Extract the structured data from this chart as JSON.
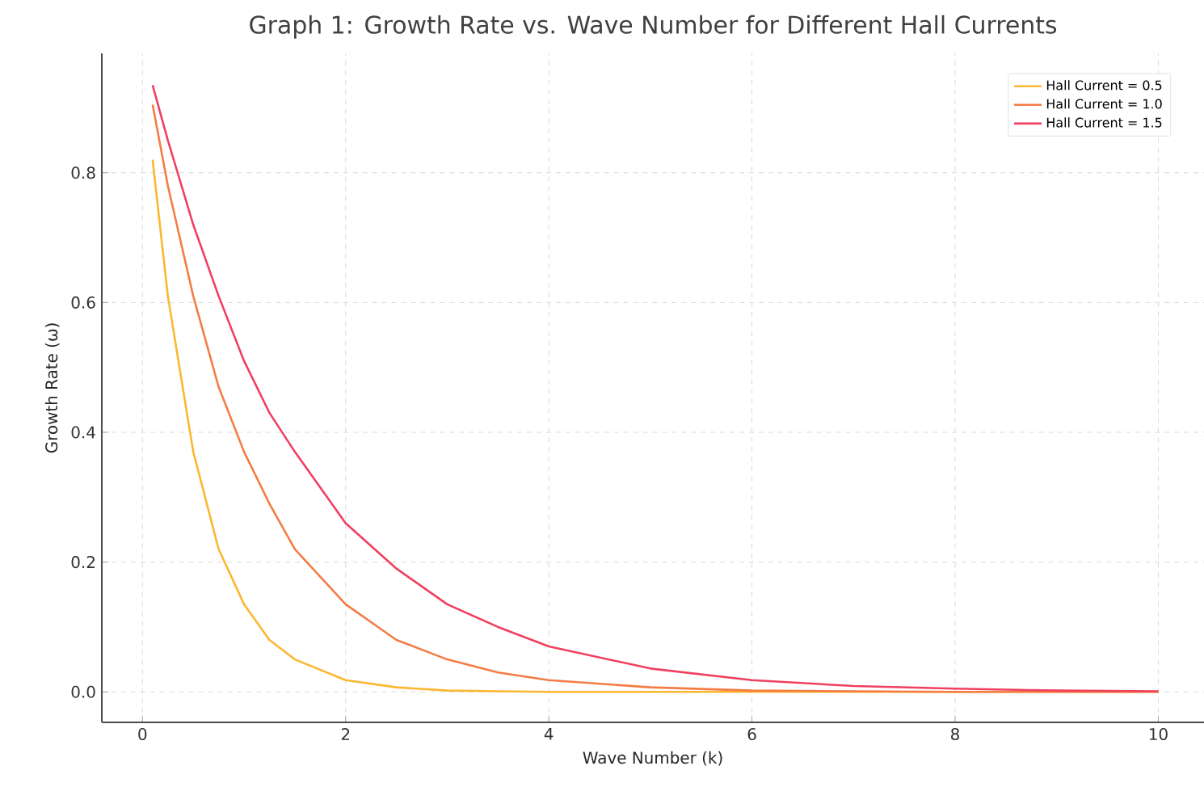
{
  "chart_data": {
    "type": "line",
    "title": "Graph 1: Growth Rate vs. Wave Number for Different Hall Currents",
    "xlabel": "Wave Number (k)",
    "ylabel": "Growth Rate (ω)",
    "x": [
      0.1,
      0.25,
      0.5,
      0.75,
      1,
      1.25,
      1.5,
      2,
      2.5,
      3,
      3.5,
      4,
      5,
      6,
      7,
      8,
      9,
      10
    ],
    "series": [
      {
        "name": "Hall Current = 0.5",
        "color": "#fbb731",
        "values": [
          0.82,
          0.61,
          0.37,
          0.22,
          0.135,
          0.08,
          0.05,
          0.018,
          0.007,
          0.002,
          0.001,
          0,
          0,
          0,
          0,
          0,
          0,
          0
        ]
      },
      {
        "name": "Hall Current = 1.0",
        "color": "#f47c45",
        "values": [
          0.905,
          0.78,
          0.61,
          0.47,
          0.37,
          0.29,
          0.22,
          0.135,
          0.08,
          0.05,
          0.03,
          0.018,
          0.007,
          0.002,
          0.001,
          0,
          0,
          0
        ]
      },
      {
        "name": "Hall Current = 1.5",
        "color": "#f0405f",
        "values": [
          0.935,
          0.85,
          0.72,
          0.61,
          0.51,
          0.43,
          0.37,
          0.26,
          0.19,
          0.135,
          0.1,
          0.07,
          0.036,
          0.018,
          0.009,
          0.005,
          0.002,
          0.001
        ]
      }
    ],
    "xlim": [
      -0.4,
      10.45
    ],
    "ylim": [
      -0.047,
      0.984
    ],
    "xticks": [
      0,
      2,
      4,
      6,
      8,
      10
    ],
    "yticks": [
      {
        "value": 0,
        "label": "0.0"
      },
      0.2,
      0.4,
      0.6,
      0.8
    ],
    "grid": true,
    "legend": "top right",
    "marker": "none",
    "line_style": "solid"
  }
}
